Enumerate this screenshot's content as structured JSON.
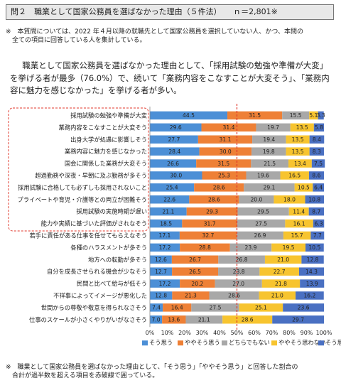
{
  "header": {
    "title": "問２　職業として国家公務員を選ばなかった理由（５件法）　　ｎ＝2,801※"
  },
  "note_top": [
    "※　本質問については、2022 年４月以降の就職先として国家公務員を選択していない人、かつ、本問の",
    "　全ての項目に回答している人を集計している。"
  ],
  "lead": "職業として国家公務員を選ばなかった理由として、「採用試験の勉強や準備が大変」を挙げる者が最多（76.0%）で、続いて「業務内容をこなすことが大変そう」、「業務内容に魅力を感じなかった」を挙げる者が多い。",
  "note_bottom": [
    "※　職業として国家公務員を選ばなかった理由として、「そう思う」「ややそう思う」と回答した割合の",
    "　合計が過半数を超える項目を赤破線で囲っている。"
  ],
  "colors": {
    "s1": "#4c8fd6",
    "s2": "#ee8036",
    "s3": "#a8a8a8",
    "s4": "#f7c42f",
    "s5": "#4a70c2",
    "highlight": "#e0382c"
  },
  "chart_data": {
    "type": "bar",
    "stacked": true,
    "orientation": "horizontal",
    "categories": [
      "採用試験の勉強や準備が大変",
      "業務内容をこなすことが大変そう",
      "出身大学が処遇に影響しそう",
      "業務内容に魅力を感じなかった",
      "国会に関係した業務が大変そう",
      "超過勤務や深夜・早朝に及ぶ勤務が多そう",
      "採用試験に合格しても必ずしも採用されないこと",
      "プライベートや育児・介護等との両立が困難そう",
      "採用試験の実施時期が遅い",
      "能力や実績に基づいた評価がされなそう",
      "若手に責任がある仕事を任せてもらえなそう",
      "各種のハラスメントが多そう",
      "地方への転勤が多そう",
      "自分を成長させられる機会が少なそう",
      "民間と比べて給与が低そう",
      "不祥事によってイメージが悪化した",
      "世間からの尊敬や敬意を得られなさそう",
      "仕事のスケールが小さくやりがいがなさそう"
    ],
    "series": [
      {
        "name": "そう思う",
        "values": [
          44.5,
          29.6,
          27.7,
          28.4,
          26.6,
          30.0,
          25.4,
          22.6,
          21.1,
          18.5,
          17.1,
          17.2,
          12.6,
          12.7,
          17.2,
          12.8,
          7.4,
          7.0
        ]
      },
      {
        "name": "ややそう思う",
        "values": [
          31.5,
          31.4,
          31.1,
          30.0,
          31.5,
          25.3,
          28.6,
          28.6,
          29.3,
          31.7,
          32.7,
          28.8,
          26.7,
          26.5,
          20.2,
          21.3,
          16.4,
          13.6
        ]
      },
      {
        "name": "どちらでもない",
        "values": [
          15.5,
          19.7,
          19.4,
          19.8,
          21.5,
          19.6,
          29.1,
          20.0,
          29.5,
          27.5,
          26.9,
          23.9,
          26.8,
          23.8,
          27.0,
          28.6,
          27.5,
          21.1
        ]
      },
      {
        "name": "ややそう思わない",
        "values": [
          5.1,
          13.5,
          13.5,
          13.5,
          13.4,
          16.5,
          10.5,
          18.0,
          11.4,
          16.1,
          15.7,
          19.5,
          21.0,
          22.7,
          21.8,
          21.0,
          25.1,
          28.6
        ]
      },
      {
        "name": "そう思わない",
        "values": [
          3.3,
          5.8,
          8.4,
          8.3,
          7.5,
          8.6,
          6.4,
          10.8,
          8.7,
          6.3,
          7.7,
          10.5,
          12.8,
          14.3,
          13.9,
          16.2,
          23.6,
          29.7
        ]
      }
    ],
    "xlim": [
      0,
      100
    ],
    "xticks": [
      "0%",
      "10%",
      "20%",
      "30%",
      "40%",
      "50%",
      "60%",
      "70%",
      "80%",
      "90%",
      "100%"
    ],
    "reference_line": 50,
    "highlighted_count": 10,
    "legend_position": "bottom"
  }
}
